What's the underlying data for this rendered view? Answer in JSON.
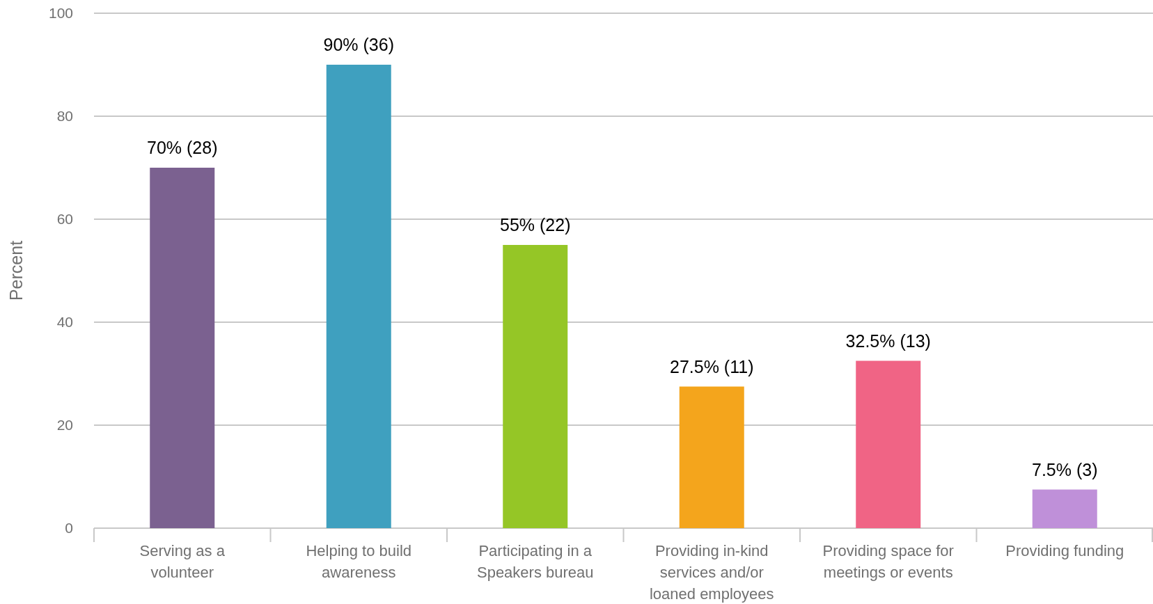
{
  "chart_data": {
    "type": "bar",
    "ylabel": "Percent",
    "categories": [
      "Serving as a volunteer",
      "Helping to build awareness",
      "Participating in a Speakers bureau",
      "Providing in-kind services and/or loaned employees",
      "Providing space for meetings or events",
      "Providing funding"
    ],
    "values": [
      70,
      90,
      55,
      27.5,
      32.5,
      7.5
    ],
    "colors": [
      "#7b6190",
      "#3fa0bf",
      "#95c626",
      "#f4a51c",
      "#f06485",
      "#bf90d9"
    ],
    "value_labels": [
      "70% (28)",
      "90% (36)",
      "55% (22)",
      "27.5% (11)",
      "32.5% (13)",
      "7.5% (3)"
    ],
    "ylim": [
      0,
      100
    ],
    "yticks": [
      0,
      20,
      40,
      60,
      80,
      100
    ],
    "grid": "y"
  }
}
